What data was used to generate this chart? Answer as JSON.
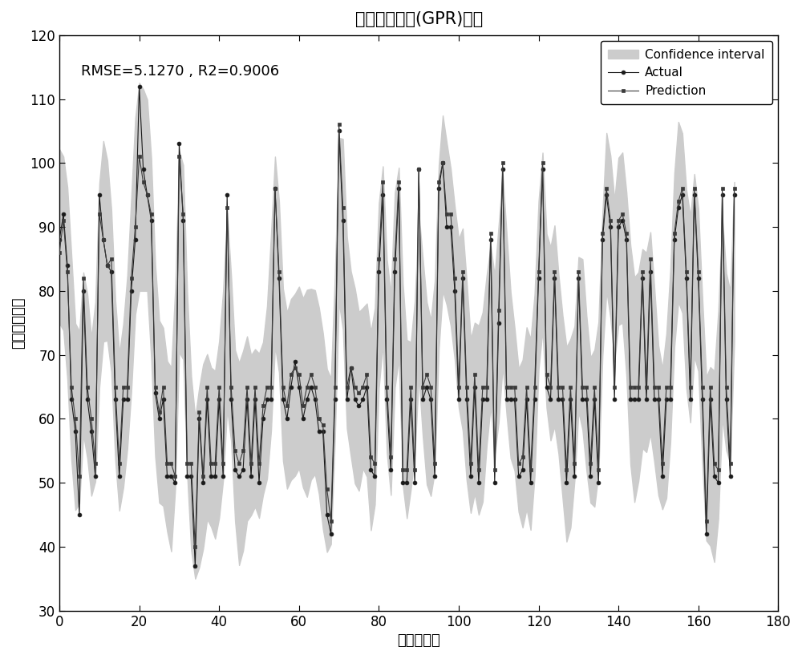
{
  "title": "高斯过程回归(GPR)方法",
  "xlabel": "测试样本数",
  "ylabel": "门尼箘度预测",
  "rmse_text": "RMSE=5.1270 ， R2=0.9006",
  "xlim": [
    0,
    180
  ],
  "ylim": [
    30,
    120
  ],
  "xticks": [
    0,
    20,
    40,
    60,
    80,
    100,
    120,
    140,
    160,
    180
  ],
  "yticks": [
    30,
    40,
    50,
    60,
    70,
    80,
    90,
    100,
    110,
    120
  ],
  "bg_color": "#ffffff",
  "actual_color": "#1a1a1a",
  "pred_color": "#3a3a3a",
  "ci_color": "#cccccc",
  "title_fontsize": 15,
  "label_fontsize": 13,
  "tick_fontsize": 12,
  "legend_fontsize": 11,
  "actual_values": [
    88,
    92,
    84,
    63,
    58,
    45,
    80,
    63,
    58,
    51,
    95,
    88,
    84,
    83,
    63,
    51,
    63,
    63,
    80,
    88,
    112,
    99,
    95,
    91,
    64,
    60,
    63,
    51,
    51,
    50,
    103,
    91,
    51,
    51,
    37,
    60,
    50,
    63,
    51,
    51,
    63,
    51,
    95,
    63,
    52,
    51,
    52,
    63,
    51,
    63,
    50,
    60,
    63,
    63,
    96,
    82,
    63,
    60,
    65,
    69,
    65,
    60,
    63,
    65,
    63,
    58,
    58,
    45,
    42,
    63,
    105,
    91,
    63,
    68,
    63,
    62,
    63,
    65,
    52,
    51,
    83,
    95,
    63,
    52,
    83,
    96,
    50,
    50,
    63,
    50,
    99,
    63,
    65,
    63,
    51,
    96,
    100,
    90,
    90,
    80,
    63,
    82,
    63,
    51,
    65,
    50,
    63,
    63,
    88,
    50,
    75,
    99,
    63,
    63,
    63,
    51,
    52,
    63,
    50,
    63,
    82,
    99,
    65,
    63,
    82,
    63,
    63,
    50,
    63,
    51,
    82,
    63,
    63,
    51,
    63,
    50,
    88,
    95,
    90,
    63,
    90,
    91,
    88,
    63,
    63,
    63,
    82,
    63,
    83,
    63,
    63,
    51,
    63,
    63,
    88,
    93,
    95,
    82,
    63,
    95,
    82,
    63,
    42,
    63,
    51,
    50,
    95,
    63,
    51,
    95
  ],
  "pred_values": [
    86,
    91,
    83,
    65,
    60,
    51,
    82,
    65,
    60,
    53,
    92,
    88,
    84,
    85,
    65,
    53,
    65,
    65,
    82,
    90,
    101,
    97,
    95,
    92,
    65,
    61,
    65,
    53,
    53,
    51,
    101,
    92,
    53,
    53,
    40,
    61,
    51,
    65,
    53,
    53,
    65,
    53,
    93,
    65,
    55,
    53,
    55,
    65,
    53,
    65,
    53,
    62,
    65,
    65,
    96,
    83,
    65,
    62,
    67,
    68,
    67,
    62,
    65,
    67,
    65,
    60,
    59,
    49,
    44,
    65,
    106,
    93,
    65,
    68,
    65,
    64,
    65,
    67,
    54,
    53,
    85,
    97,
    65,
    54,
    85,
    97,
    52,
    52,
    65,
    52,
    99,
    65,
    67,
    65,
    53,
    97,
    100,
    92,
    92,
    82,
    65,
    83,
    65,
    53,
    67,
    52,
    65,
    65,
    89,
    52,
    77,
    100,
    65,
    65,
    65,
    53,
    54,
    65,
    52,
    65,
    83,
    100,
    67,
    65,
    83,
    65,
    65,
    52,
    65,
    53,
    83,
    65,
    65,
    53,
    65,
    52,
    89,
    96,
    91,
    65,
    91,
    92,
    89,
    65,
    65,
    65,
    83,
    65,
    85,
    65,
    65,
    53,
    65,
    65,
    89,
    94,
    96,
    83,
    65,
    96,
    83,
    65,
    44,
    65,
    53,
    52,
    96,
    65,
    53,
    96
  ]
}
